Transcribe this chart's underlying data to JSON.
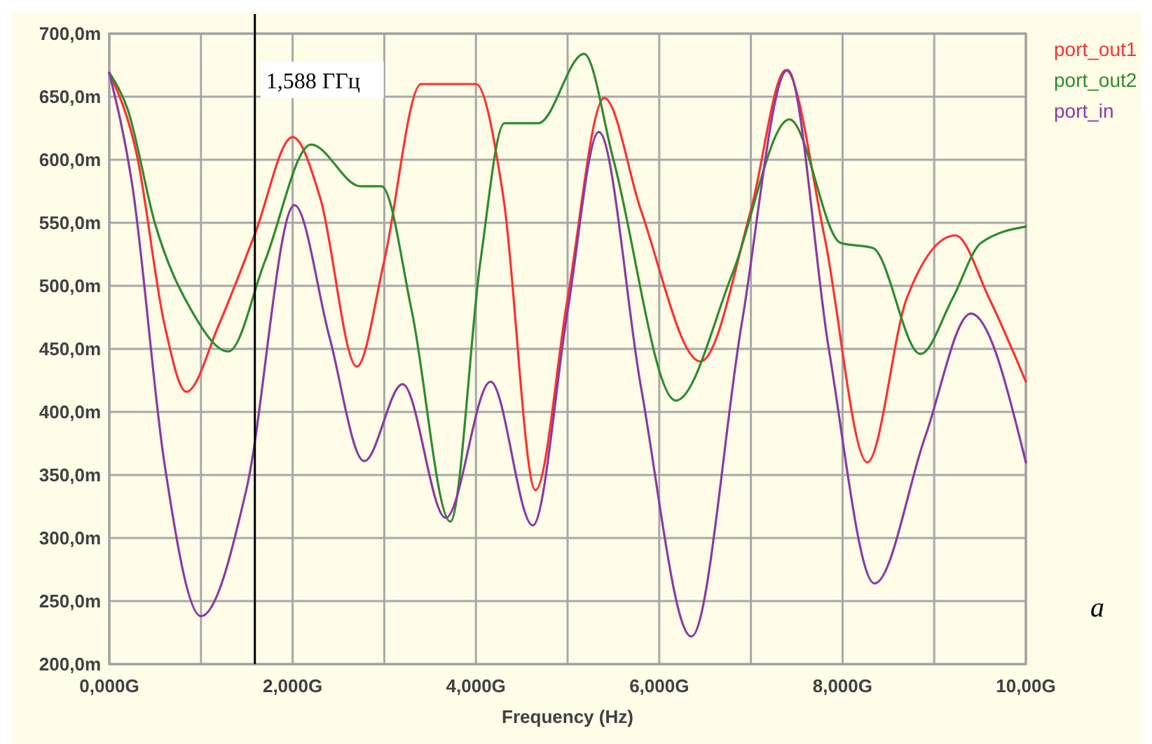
{
  "chart_data": {
    "type": "line",
    "xlabel": "Frequency (Hz)",
    "xlim": [
      0,
      10
    ],
    "xticks": [
      {
        "value": 0,
        "label": "0,000G"
      },
      {
        "value": 1,
        "label": null
      },
      {
        "value": 2,
        "label": "2,000G"
      },
      {
        "value": 3,
        "label": null
      },
      {
        "value": 4,
        "label": "4,000G"
      },
      {
        "value": 5,
        "label": null
      },
      {
        "value": 6,
        "label": "6,000G"
      },
      {
        "value": 7,
        "label": null
      },
      {
        "value": 8,
        "label": "8,000G"
      },
      {
        "value": 9,
        "label": null
      },
      {
        "value": 10,
        "label": "10,00G"
      }
    ],
    "ylim": [
      200,
      700
    ],
    "yticks": [
      {
        "value": 200,
        "label": "200,0m"
      },
      {
        "value": 250,
        "label": "250,0m"
      },
      {
        "value": 300,
        "label": "300,0m"
      },
      {
        "value": 350,
        "label": "350,0m"
      },
      {
        "value": 400,
        "label": "400,0m"
      },
      {
        "value": 450,
        "label": "450,0m"
      },
      {
        "value": 500,
        "label": "500,0m"
      },
      {
        "value": 550,
        "label": "550,0m"
      },
      {
        "value": 600,
        "label": "600,0m"
      },
      {
        "value": 650,
        "label": "650,0m"
      },
      {
        "value": 700,
        "label": "700,0m"
      }
    ],
    "grid": true,
    "legend": "top right",
    "marker": "none",
    "line_style": "solid",
    "ref_lines": [
      {
        "axis": "x",
        "value": 1.588,
        "label": "1,588 ГГц",
        "color": "#000000"
      }
    ],
    "annotations": [
      "a"
    ],
    "series": [
      {
        "name": "port_out1",
        "color": "#ff3030",
        "x": [
          0,
          0.3,
          0.6,
          0.84,
          1.2,
          1.588,
          2.0,
          2.3,
          2.7,
          3.0,
          3.4,
          4.0,
          4.3,
          4.65,
          5.0,
          5.4,
          5.8,
          6.45,
          7.0,
          7.38,
          7.8,
          8.27,
          8.7,
          9.23,
          9.6,
          10
        ],
        "values": [
          669,
          604,
          470,
          416,
          470,
          541,
          618,
          570,
          436,
          520,
          660,
          660,
          570,
          338,
          490,
          649,
          560,
          440,
          560,
          671,
          540,
          360,
          490,
          540,
          490,
          424
        ]
      },
      {
        "name": "port_out2",
        "color": "#2e8b2e",
        "x": [
          0,
          0.2,
          0.5,
          0.9,
          1.3,
          1.7,
          2.2,
          2.74,
          2.97,
          3.3,
          3.72,
          4.05,
          4.31,
          4.68,
          5.18,
          5.5,
          6.18,
          6.8,
          7.42,
          7.98,
          8.33,
          8.85,
          9.2,
          9.51,
          10
        ],
        "values": [
          669,
          640,
          549,
          480,
          448,
          520,
          612,
          579,
          579,
          480,
          313,
          520,
          629,
          629,
          684,
          600,
          409,
          510,
          632,
          534,
          530,
          446,
          490,
          534,
          547
        ]
      },
      {
        "name": "port_in",
        "color": "#8b3aa0",
        "x": [
          0,
          0.25,
          0.6,
          1.0,
          1.5,
          2.02,
          2.4,
          2.78,
          3.2,
          3.67,
          4.16,
          4.62,
          5.0,
          5.34,
          5.8,
          6.35,
          6.9,
          7.4,
          7.85,
          8.35,
          8.9,
          9.4,
          10
        ],
        "values": [
          669,
          580,
          360,
          238,
          340,
          564,
          460,
          361,
          422,
          316,
          424,
          310,
          480,
          622,
          420,
          222,
          470,
          671,
          450,
          264,
          380,
          478,
          360
        ]
      }
    ]
  }
}
